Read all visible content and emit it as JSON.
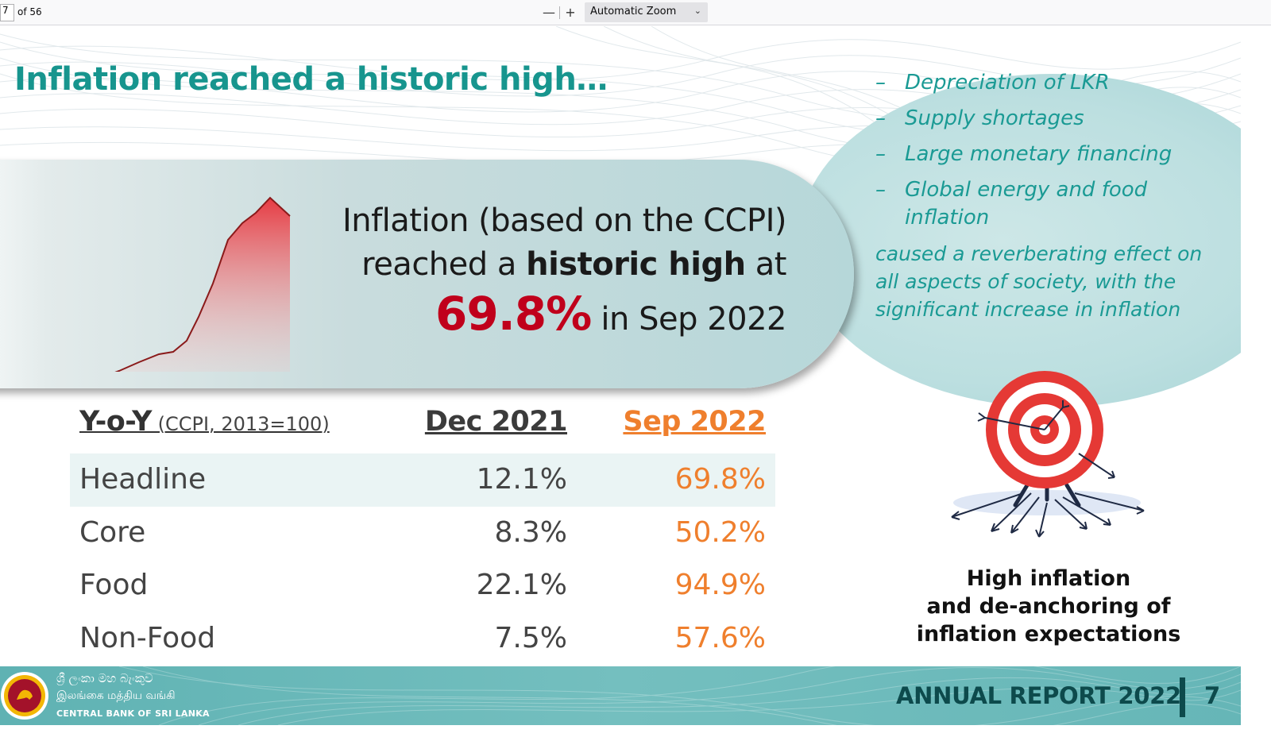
{
  "toolbar": {
    "page_current": "7",
    "page_total": "of 56",
    "zoom_out": "—",
    "zoom_in": "+",
    "zoom_label": "Automatic Zoom"
  },
  "slide": {
    "title": "Inflation reached a historic high…",
    "headline": {
      "line1": "Inflation (based on the CCPI)",
      "line2_pre": "reached a ",
      "line2_bold": "historic high",
      "line2_post": " at",
      "pct": "69.8%",
      "rest": " in Sep 2022"
    },
    "causes": [
      {
        "dash": "–",
        "text": "Depreciation of LKR"
      },
      {
        "dash": "–",
        "text": "Supply shortages"
      },
      {
        "dash": "–",
        "text": "Large monetary financing"
      },
      {
        "dash": "–",
        "text": "Global energy and food inflation"
      }
    ],
    "consequence": "caused a reverberating effect on all aspects of society, with the significant increase in inflation",
    "table": {
      "header_big": "Y-o-Y",
      "header_small": " (CCPI, 2013=100)",
      "col_dec": "Dec 2021",
      "col_sep": "Sep 2022",
      "rows": [
        {
          "label": "Headline",
          "dec": "12.1%",
          "sep": "69.8%"
        },
        {
          "label": "Core",
          "dec": "8.3%",
          "sep": "50.2%"
        },
        {
          "label": "Food",
          "dec": "22.1%",
          "sep": "94.9%"
        },
        {
          "label": "Non-Food",
          "dec": "7.5%",
          "sep": "57.6%"
        }
      ]
    },
    "target_caption": {
      "line1": "High inflation",
      "line2": "and de-anchoring of",
      "line3": "inflation expectations"
    },
    "colors": {
      "teal": "#17958e",
      "red": "#c0001b",
      "orange": "#ef7f2d",
      "footer_text": "#0d4a4c"
    }
  },
  "footer": {
    "bank_sinhala": "ශ්‍රී ලංකා මහ බැංකුව",
    "bank_tamil": "இலங்கை மத்திய வங்கி",
    "bank_english": "CENTRAL BANK OF SRI LANKA",
    "report": "ANNUAL REPORT 2022",
    "page": "7"
  }
}
